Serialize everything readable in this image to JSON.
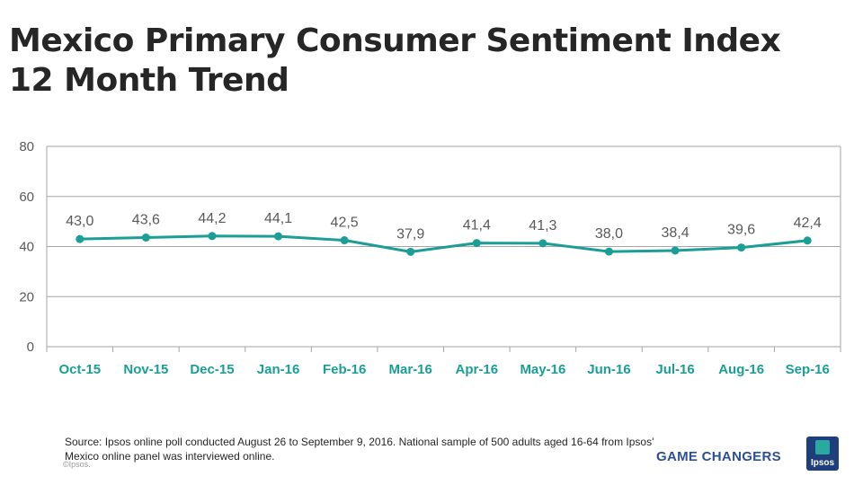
{
  "title": {
    "line1": "Mexico Primary Consumer Sentiment Index",
    "line2": "12 Month Trend"
  },
  "chart_data": {
    "type": "line",
    "title": "Mexico Primary Consumer Sentiment Index 12 Month Trend",
    "categories": [
      "Oct-15",
      "Nov-15",
      "Dec-15",
      "Jan-16",
      "Feb-16",
      "Mar-16",
      "Apr-16",
      "May-16",
      "Jun-16",
      "Jul-16",
      "Aug-16",
      "Sep-16"
    ],
    "series": [
      {
        "name": "Primary Consumer Sentiment Index",
        "values": [
          43.0,
          43.6,
          44.2,
          44.1,
          42.5,
          37.9,
          41.4,
          41.3,
          38.0,
          38.4,
          39.6,
          42.4
        ],
        "labels": [
          "43,0",
          "43,6",
          "44,2",
          "44,1",
          "42,5",
          "37,9",
          "41,4",
          "41,3",
          "38,0",
          "38,4",
          "39,6",
          "42,4"
        ]
      }
    ],
    "ylim": [
      0,
      80
    ],
    "yticks": [
      0,
      20,
      40,
      60,
      80
    ],
    "xlabel": "",
    "ylabel": "",
    "grid": true,
    "colors": {
      "line": "#1a9e96",
      "category_labels": "#1a9e96",
      "gridline": "#a6a6a6",
      "data_labels": "#595959"
    }
  },
  "footer": {
    "source": "Source: Ipsos online poll conducted August 26 to September 9, 2016. National sample of 500 adults aged 16-64 from Ipsos' Mexico online panel was interviewed online.",
    "copyright": "©Ipsos.",
    "tagline": "GAME CHANGERS",
    "logo_text": "Ipsos"
  }
}
